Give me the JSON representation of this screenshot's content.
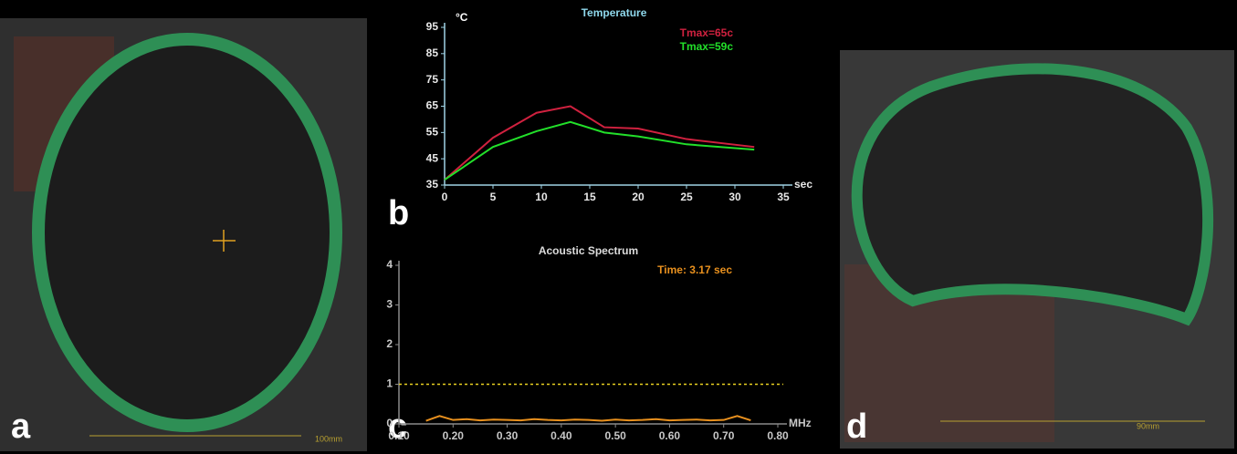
{
  "panel_labels": [
    "a",
    "b",
    "c",
    "d"
  ],
  "scale_labels": [
    "100mm",
    "90mm"
  ],
  "chart_data": [
    {
      "type": "line",
      "title": "Temperature",
      "y_label": "°C",
      "x_label": "sec",
      "x": [
        0,
        5,
        9.5,
        13,
        16.5,
        20,
        25,
        32
      ],
      "series": [
        {
          "name": "Tmax=65c",
          "color": "#d0213f",
          "values": [
            37,
            53,
            62.5,
            65,
            57,
            56.5,
            52.5,
            49.5
          ]
        },
        {
          "name": "Tmax=59c",
          "color": "#22e02a",
          "values": [
            37,
            49.5,
            55.5,
            59,
            55,
            53.5,
            50.5,
            48.5
          ]
        }
      ],
      "xlim": [
        0,
        35
      ],
      "xticks": [
        0,
        5,
        10,
        15,
        20,
        25,
        30,
        35
      ],
      "ylim": [
        35,
        95
      ],
      "yticks": [
        35,
        45,
        55,
        65,
        75,
        85,
        95
      ],
      "legend": "top-right"
    },
    {
      "type": "line",
      "title": "Acoustic Spectrum",
      "annotation": "Time: 3.17 sec",
      "x_label": "MHz",
      "x": [
        0.15,
        0.175,
        0.2,
        0.225,
        0.25,
        0.275,
        0.3,
        0.325,
        0.35,
        0.375,
        0.4,
        0.425,
        0.45,
        0.475,
        0.5,
        0.525,
        0.55,
        0.575,
        0.6,
        0.625,
        0.65,
        0.675,
        0.7,
        0.725,
        0.75
      ],
      "series": [
        {
          "color": "#e8901e",
          "values": [
            0.08,
            0.2,
            0.1,
            0.12,
            0.09,
            0.11,
            0.1,
            0.09,
            0.12,
            0.1,
            0.09,
            0.11,
            0.1,
            0.08,
            0.11,
            0.09,
            0.1,
            0.12,
            0.09,
            0.1,
            0.11,
            0.09,
            0.1,
            0.2,
            0.09
          ]
        }
      ],
      "hline": 1,
      "xlim": [
        0.1,
        0.8
      ],
      "xticks": [
        {
          "value": 0.1,
          "label": "0.10"
        },
        {
          "value": 0.2,
          "label": "0.20"
        },
        {
          "value": 0.3,
          "label": "0.30"
        },
        {
          "value": 0.4,
          "label": "0.40"
        },
        {
          "value": 0.5,
          "label": "0.50"
        },
        {
          "value": 0.6,
          "label": "0.60"
        },
        {
          "value": 0.7,
          "label": "0.70"
        },
        {
          "value": 0.8,
          "label": "0.80"
        }
      ],
      "ylim": [
        0,
        4
      ],
      "yticks": [
        0,
        1,
        2,
        3,
        4
      ]
    }
  ]
}
